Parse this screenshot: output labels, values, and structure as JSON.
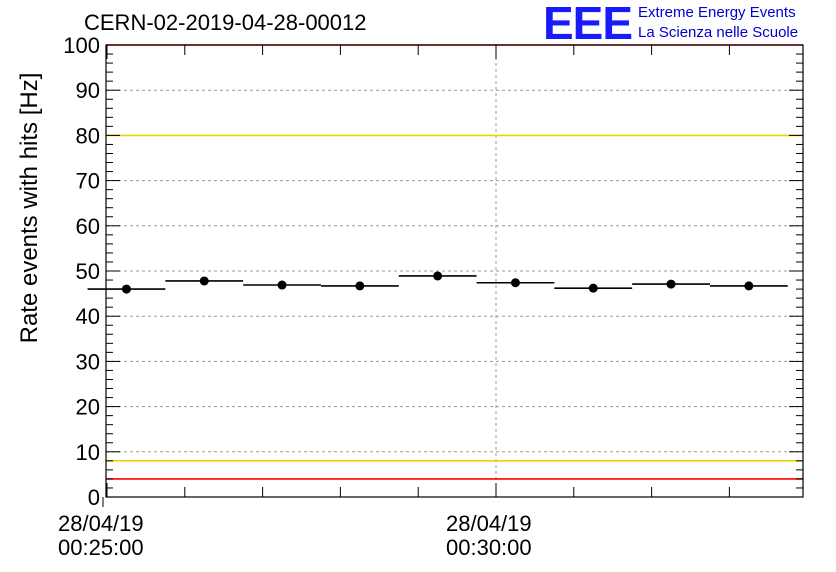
{
  "title": "CERN-02-2019-04-28-00012",
  "logo": {
    "mark": "EEE",
    "line1": "Extreme Energy Events",
    "line2": "La Scienza nelle Scuole"
  },
  "colors": {
    "red_threshold": "#ff0000",
    "yellow_threshold": "#f0d000",
    "grid": "#999999",
    "marker": "#000000",
    "logo": "#1a1aff"
  },
  "chart_data": {
    "type": "scatter",
    "title": "CERN-02-2019-04-28-00012",
    "xlabel": "",
    "ylabel": "Rate events with hits [Hz]",
    "ylim": [
      0,
      100
    ],
    "yticks": [
      0,
      10,
      20,
      30,
      40,
      50,
      60,
      70,
      80,
      90,
      100
    ],
    "xticks": [
      {
        "date": "28/04/19",
        "time": "00:25:00"
      },
      {
        "date": "28/04/19",
        "time": "00:30:00"
      }
    ],
    "grid": true,
    "series": [
      {
        "values": [
          {
            "x_start": "00:24:45",
            "x_end": "00:25:45",
            "y": 46.0
          },
          {
            "x_start": "00:25:45",
            "x_end": "00:26:45",
            "y": 47.8
          },
          {
            "x_start": "00:26:45",
            "x_end": "00:27:45",
            "y": 46.9
          },
          {
            "x_start": "00:27:45",
            "x_end": "00:28:45",
            "y": 46.7
          },
          {
            "x_start": "00:28:45",
            "x_end": "00:29:45",
            "y": 48.9
          },
          {
            "x_start": "00:29:45",
            "x_end": "00:30:45",
            "y": 47.4
          },
          {
            "x_start": "00:30:45",
            "x_end": "00:31:45",
            "y": 46.2
          },
          {
            "x_start": "00:31:45",
            "x_end": "00:32:45",
            "y": 47.1
          },
          {
            "x_start": "00:32:45",
            "x_end": "00:33:45",
            "y": 46.7
          }
        ]
      }
    ],
    "threshold_lines": [
      {
        "y": 100,
        "color": "#ff0000"
      },
      {
        "y": 80,
        "color": "#f0d000"
      },
      {
        "y": 8,
        "color": "#f0d000"
      },
      {
        "y": 4,
        "color": "#ff0000"
      }
    ]
  }
}
